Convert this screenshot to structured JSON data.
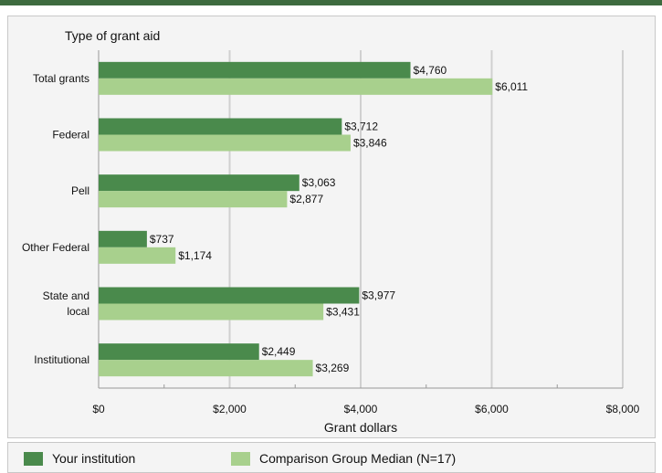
{
  "chart_data": {
    "type": "bar",
    "orientation": "horizontal",
    "title": "Type of grant aid",
    "xlabel": "Grant dollars",
    "xlim": [
      0,
      8000
    ],
    "xticks": [
      0,
      2000,
      4000,
      6000,
      8000
    ],
    "xtick_labels": [
      "$0",
      "$2,000",
      "$4,000",
      "$6,000",
      "$8,000"
    ],
    "grid": true,
    "legend_position": "bottom",
    "categories": [
      [
        "Total grants"
      ],
      [
        "Federal"
      ],
      [
        "Pell"
      ],
      [
        "Other Federal"
      ],
      [
        "State and",
        "local"
      ],
      [
        "Institutional"
      ]
    ],
    "series": [
      {
        "name": "Your institution",
        "color": "#4a8a4c",
        "values": [
          4760,
          3712,
          3063,
          737,
          3977,
          2449
        ],
        "labels": [
          "$4,760",
          "$3,712",
          "$3,063",
          "$737",
          "$3,977",
          "$2,449"
        ]
      },
      {
        "name": "Comparison Group Median (N=17)",
        "color": "#a8d08d",
        "values": [
          6011,
          3846,
          2877,
          1174,
          3431,
          3269
        ],
        "labels": [
          "$6,011",
          "$3,846",
          "$2,877",
          "$1,174",
          "$3,431",
          "$3,269"
        ]
      }
    ]
  },
  "legend": {
    "items": [
      {
        "label": "Your institution",
        "color": "#4a8a4c"
      },
      {
        "label": "Comparison Group Median (N=17)",
        "color": "#a8d08d"
      }
    ]
  }
}
